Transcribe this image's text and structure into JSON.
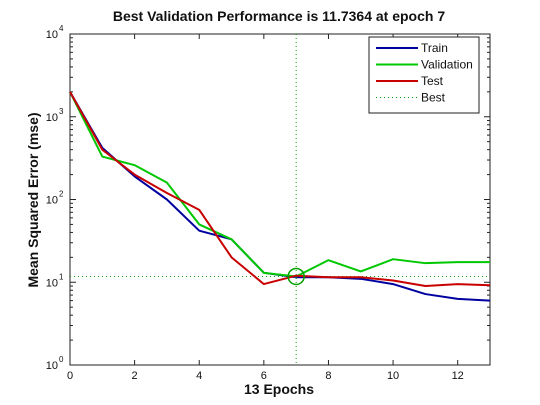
{
  "chart_data": {
    "type": "line",
    "title": "Best Validation Performance is 11.7364 at epoch 7",
    "xlabel": "13 Epochs",
    "ylabel": "Mean Squared Error  (mse)",
    "xlim": [
      0,
      13
    ],
    "ylim": [
      1,
      10000
    ],
    "yscale": "log",
    "x_ticks": [
      "0",
      "2",
      "4",
      "6",
      "8",
      "10",
      "12"
    ],
    "y_ticks": [
      {
        "base": "10",
        "exp": "0"
      },
      {
        "base": "10",
        "exp": "1"
      },
      {
        "base": "10",
        "exp": "2"
      },
      {
        "base": "10",
        "exp": "3"
      },
      {
        "base": "10",
        "exp": "4"
      }
    ],
    "grid": false,
    "legend_position": "top-right",
    "series": [
      {
        "name": "Train",
        "color": "#0000a0",
        "x": [
          0,
          1,
          2,
          3,
          4,
          5,
          6,
          7,
          8,
          9,
          10,
          11,
          12,
          13
        ],
        "y": [
          2000,
          420,
          190,
          100,
          42,
          33,
          13,
          11.5,
          11.5,
          11,
          9.5,
          7.2,
          6.3,
          6
        ]
      },
      {
        "name": "Validation",
        "color": "#00c800",
        "x": [
          0,
          1,
          2,
          3,
          4,
          5,
          6,
          7,
          8,
          9,
          10,
          11,
          12,
          13
        ],
        "y": [
          2000,
          330,
          260,
          160,
          50,
          33,
          13,
          11.7364,
          18.5,
          13.5,
          19,
          17,
          17.5,
          17.5
        ]
      },
      {
        "name": "Test",
        "color": "#c80000",
        "x": [
          0,
          1,
          2,
          3,
          4,
          5,
          6,
          7,
          8,
          9,
          10,
          11,
          12,
          13
        ],
        "y": [
          2000,
          400,
          200,
          120,
          75,
          20,
          9.5,
          12,
          11.5,
          11.5,
          10.5,
          9,
          9.5,
          9.2
        ]
      }
    ],
    "best": {
      "name": "Best",
      "epoch": 7,
      "value": 11.7364,
      "color": "#00a000"
    }
  }
}
